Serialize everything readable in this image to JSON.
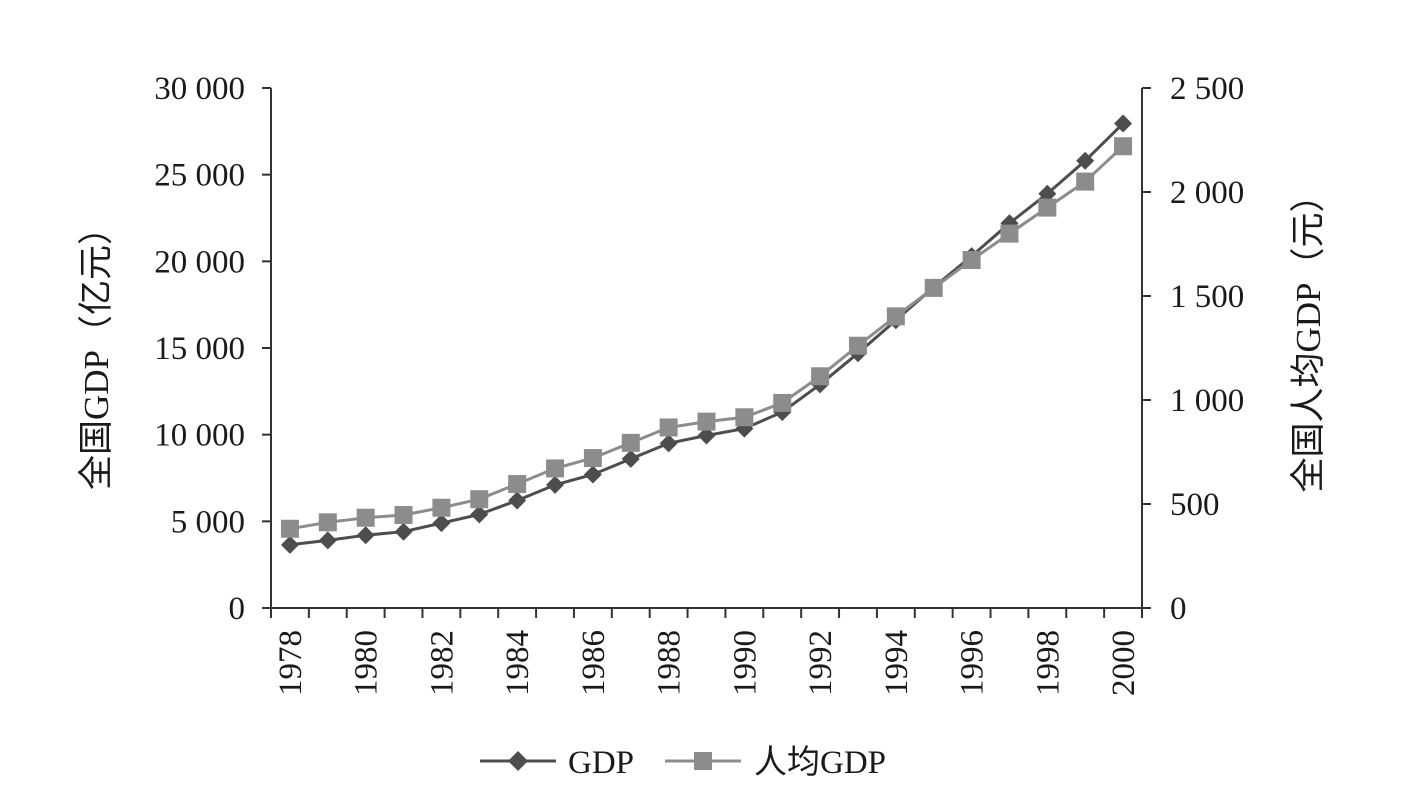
{
  "chart_data": {
    "type": "line",
    "x": [
      1978,
      1979,
      1980,
      1981,
      1982,
      1983,
      1984,
      1985,
      1986,
      1987,
      1988,
      1989,
      1990,
      1991,
      1992,
      1993,
      1994,
      1995,
      1996,
      1997,
      1998,
      1999,
      2000
    ],
    "x_tick_labels": [
      "1978",
      "1980",
      "1982",
      "1984",
      "1986",
      "1988",
      "1990",
      "1992",
      "1994",
      "1996",
      "1998",
      "2000"
    ],
    "y_left": {
      "label": "全国GDP（亿元）",
      "ylim": [
        0,
        30000
      ],
      "tick_labels": [
        "0",
        "5 000",
        "10 000",
        "15 000",
        "20 000",
        "25 000",
        "30 000"
      ],
      "tick_values": [
        0,
        5000,
        10000,
        15000,
        20000,
        25000,
        30000
      ]
    },
    "y_right": {
      "label": "全国人均GDP（元）",
      "ylim": [
        0,
        2500
      ],
      "tick_labels": [
        "0",
        "500",
        "1 000",
        "1 500",
        "2 000",
        "2 500"
      ],
      "tick_values": [
        0,
        500,
        1000,
        1500,
        2000,
        2500
      ]
    },
    "series": [
      {
        "name": "GDP",
        "axis": "left",
        "marker": "diamond",
        "color": "#4d4d4d",
        "values": [
          3645,
          3900,
          4200,
          4400,
          4900,
          5400,
          6200,
          7100,
          7700,
          8600,
          9500,
          9950,
          10350,
          11300,
          12900,
          14700,
          16600,
          18500,
          20300,
          22200,
          23900,
          25800,
          27950
        ]
      },
      {
        "name": "人均GDP",
        "axis": "right",
        "marker": "square",
        "color": "#8c8c8c",
        "values": [
          381,
          412,
          434,
          447,
          482,
          523,
          596,
          671,
          721,
          794,
          868,
          896,
          917,
          986,
          1114,
          1261,
          1402,
          1539,
          1673,
          1800,
          1925,
          2050,
          2220
        ]
      }
    ],
    "grid": false,
    "legend": "bottom-center"
  }
}
